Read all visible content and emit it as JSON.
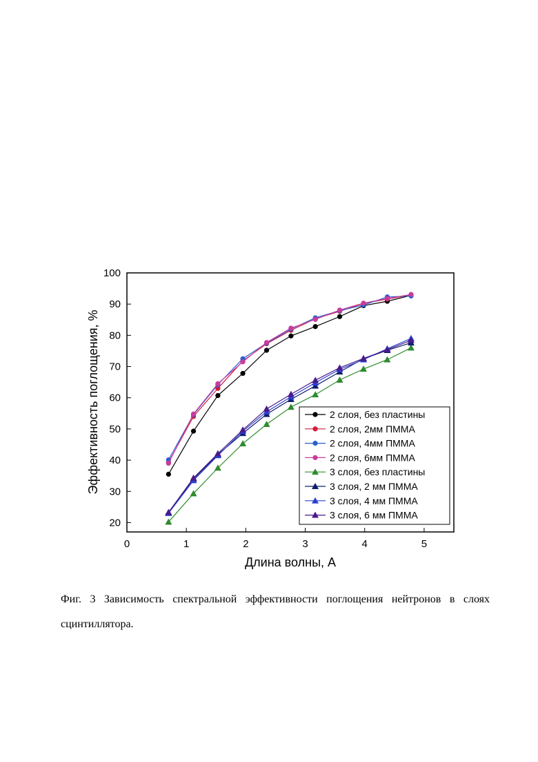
{
  "chart_data": {
    "type": "line",
    "xlabel": "Длина волны, А",
    "ylabel": "Эффективность поглощения, %",
    "xlim": [
      0,
      5.5
    ],
    "ylim": [
      17,
      100
    ],
    "xticks": [
      0,
      1,
      2,
      3,
      4,
      5
    ],
    "yticks": [
      20,
      30,
      40,
      50,
      60,
      70,
      80,
      90,
      100
    ],
    "grid": false,
    "legend_position": "bottom-right",
    "x": [
      0.7,
      1.12,
      1.53,
      1.95,
      2.35,
      2.76,
      3.17,
      3.58,
      3.98,
      4.38,
      4.78
    ],
    "series": [
      {
        "name": "2 слоя, без пластины",
        "color": "#000000",
        "marker": "circle",
        "values": [
          35.5,
          49.3,
          60.7,
          67.8,
          75.2,
          79.8,
          82.8,
          86.0,
          89.5,
          90.9,
          92.8
        ]
      },
      {
        "name": "2 слоя, 2мм ПММА",
        "color": "#d21e3c",
        "marker": "circle",
        "values": [
          39.3,
          54.0,
          63.0,
          71.8,
          77.3,
          81.6,
          85.3,
          87.7,
          90.2,
          91.6,
          92.9
        ]
      },
      {
        "name": "2 слоя, 4мм ПММА",
        "color": "#2a5fcf",
        "marker": "circle",
        "values": [
          40.1,
          54.6,
          64.2,
          72.5,
          77.5,
          82.0,
          85.6,
          87.9,
          89.7,
          92.3,
          92.6
        ]
      },
      {
        "name": "2 слоя, 6мм ПММА",
        "color": "#c83c9e",
        "marker": "circle",
        "values": [
          39.0,
          54.8,
          64.5,
          71.5,
          77.7,
          82.3,
          85.1,
          88.1,
          90.3,
          91.8,
          93.1
        ]
      },
      {
        "name": "3 слоя, без пластины",
        "color": "#2e8b2e",
        "marker": "triangle",
        "values": [
          20.2,
          29.3,
          37.5,
          45.3,
          51.5,
          57.0,
          61.0,
          65.7,
          69.2,
          72.2,
          76.0
        ]
      },
      {
        "name": "3 слоя, 2 мм ПММА",
        "color": "#0d1d6b",
        "marker": "triangle",
        "values": [
          23.2,
          34.0,
          41.8,
          48.6,
          54.7,
          59.5,
          63.8,
          68.3,
          72.5,
          75.2,
          77.6
        ]
      },
      {
        "name": "3 слоя, 4 мм ПММА",
        "color": "#2a3fcf",
        "marker": "triangle",
        "values": [
          23.0,
          33.5,
          41.5,
          49.3,
          55.5,
          60.3,
          64.8,
          69.1,
          72.2,
          75.7,
          79.0
        ]
      },
      {
        "name": "3 слоя, 6 мм ПММА",
        "color": "#4a1a8a",
        "marker": "triangle",
        "values": [
          23.3,
          34.3,
          42.1,
          49.7,
          56.4,
          61.1,
          65.6,
          69.6,
          72.6,
          75.4,
          78.4
        ]
      }
    ]
  },
  "caption": {
    "text": "Фиг. 3  Зависимость спектральной эффективности поглощения нейтронов в слоях сцинтиллятора."
  }
}
